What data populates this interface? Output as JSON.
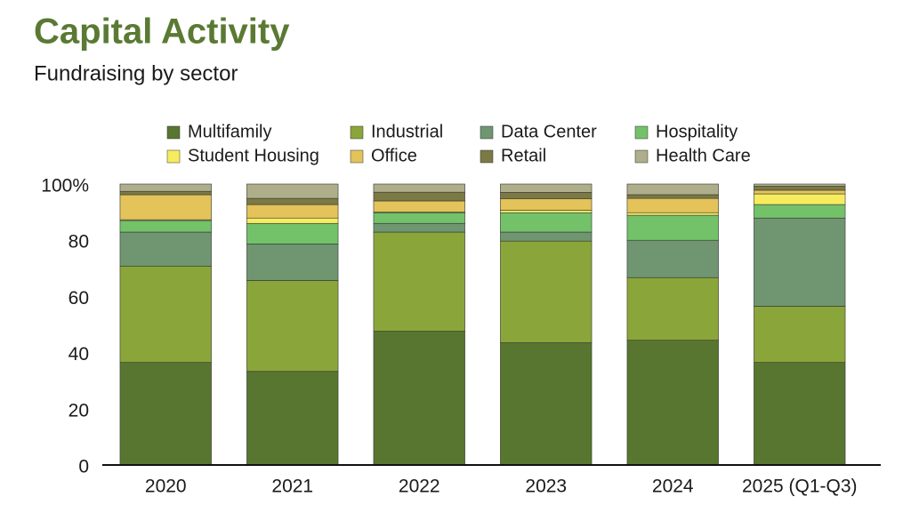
{
  "chart_data": {
    "type": "bar",
    "stacked": true,
    "title": "Capital Activity",
    "subtitle": "Fundraising by sector",
    "categories": [
      "2020",
      "2021",
      "2022",
      "2023",
      "2024",
      "2025 (Q1-Q3)"
    ],
    "series": [
      {
        "name": "Multifamily",
        "color": "#58762f",
        "values": [
          36.5,
          33.3,
          47.6,
          43.5,
          44.4,
          36.5
        ]
      },
      {
        "name": "Industrial",
        "color": "#8aa63a",
        "values": [
          34.3,
          32.4,
          35.3,
          36.2,
          22.3,
          20.0
        ]
      },
      {
        "name": "Data Center",
        "color": "#6f9670",
        "values": [
          12.1,
          13.0,
          3.1,
          3.2,
          13.3,
          31.4
        ]
      },
      {
        "name": "Hospitality",
        "color": "#73c26a",
        "values": [
          4.1,
          7.3,
          3.8,
          6.9,
          8.9,
          4.8
        ]
      },
      {
        "name": "Student Housing",
        "color": "#f7ec5e",
        "values": [
          0.3,
          1.9,
          0.3,
          0.9,
          0.9,
          3.8
        ]
      },
      {
        "name": "Office",
        "color": "#e3c35a",
        "values": [
          8.9,
          4.8,
          3.9,
          4.1,
          5.1,
          1.3
        ]
      },
      {
        "name": "Retail",
        "color": "#7b7a45",
        "values": [
          1.2,
          2.2,
          3.1,
          2.2,
          1.3,
          1.4
        ]
      },
      {
        "name": "Health Care",
        "color": "#aeae8a",
        "values": [
          2.6,
          5.1,
          2.9,
          3.0,
          3.8,
          0.8
        ]
      }
    ],
    "ylim": [
      0,
      100
    ],
    "yticks": [
      0,
      20,
      40,
      60,
      {
        "value": 80,
        "label": "80"
      },
      {
        "value": 100,
        "label": "100%"
      }
    ],
    "grid": false
  }
}
